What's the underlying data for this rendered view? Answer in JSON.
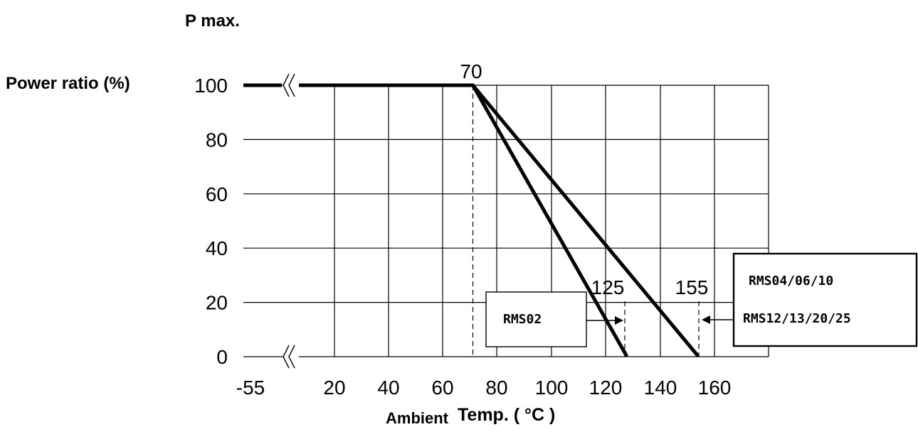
{
  "chart_data": {
    "type": "line",
    "title": "P max.",
    "ylabel": "Power ratio (%)",
    "xlabel_left": "Ambient",
    "xlabel_right": "Temp. ( °C )",
    "x_ticks": [
      "-55",
      "20",
      "40",
      "60",
      "80",
      "100",
      "120",
      "140",
      "160"
    ],
    "y_ticks": [
      "100",
      "80",
      "60",
      "40",
      "20",
      "0"
    ],
    "ylim": [
      0,
      100
    ],
    "grid": true,
    "axis_break": "between -55 and 20",
    "series": [
      {
        "name": "RMS02",
        "x": [
          -55,
          70,
          125
        ],
        "y": [
          100,
          100,
          0
        ]
      },
      {
        "name": "RMS04/06/10 RMS12/13/20/25",
        "x": [
          -55,
          70,
          155
        ],
        "y": [
          100,
          100,
          0
        ]
      }
    ],
    "annotations": {
      "knee": "70",
      "end_short": "125",
      "end_long": "155"
    },
    "legend": {
      "box1": [
        "RMS02"
      ],
      "box2": [
        "RMS04/06/10",
        "RMS12/13/20/25"
      ]
    },
    "colors": {
      "line": "#000000",
      "grid": "#000000",
      "background": "#ffffff"
    }
  }
}
